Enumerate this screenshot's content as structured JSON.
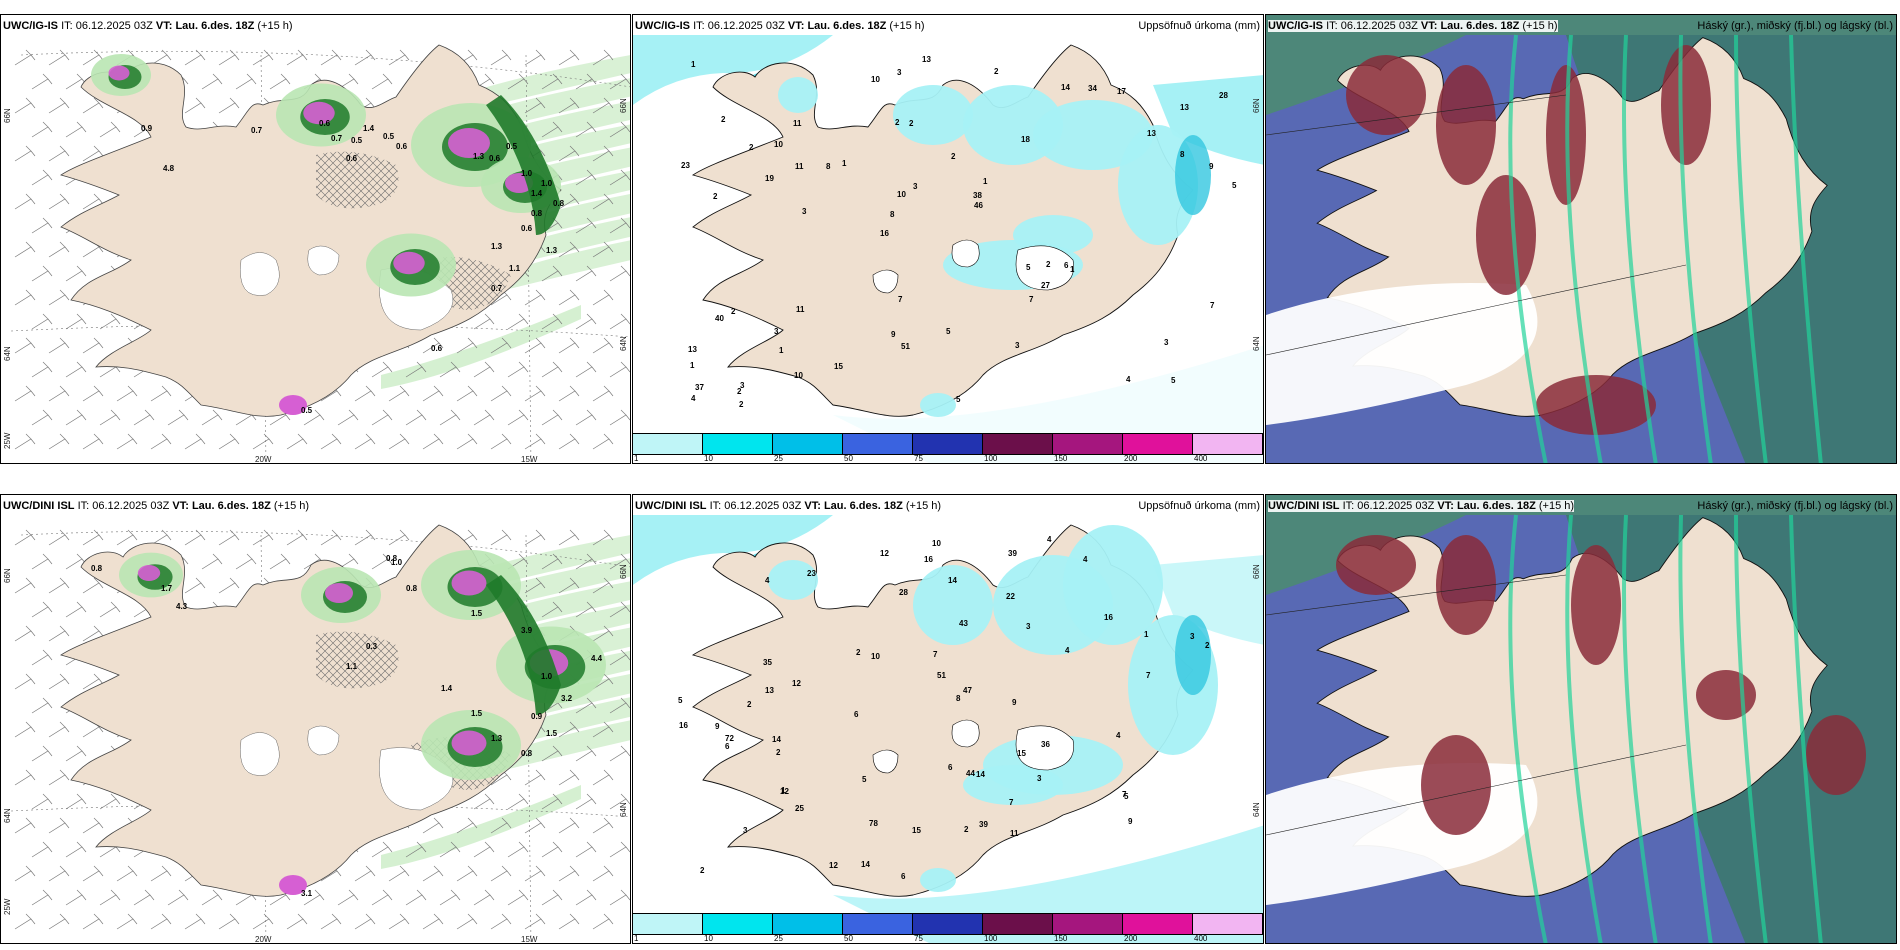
{
  "rows": [
    {
      "model": "UWC/IG-IS",
      "it_label": "IT:",
      "it_value": "06.12.2025 03Z",
      "vt_label": "VT:",
      "vt_value": "Lau. 6.des. 18Z",
      "lead": "(+15 h)",
      "wind_panel": {
        "lat_labels": [
          "66N",
          "64N",
          "25W"
        ],
        "right_lat_labels": [
          "66N",
          "64N"
        ],
        "lon_labels": [
          "20W",
          "15W"
        ],
        "values": [
          "0.7",
          "0.6",
          "0.7",
          "0.6",
          "0.5",
          "1.4",
          "0.5",
          "0.6",
          "1.3",
          "0.6",
          "0.5",
          "1.0",
          "1.4",
          "1.0",
          "0.8",
          "0.8",
          "1.3",
          "1.1",
          "0.7",
          "0.6",
          "0.5",
          "4.8",
          "0.9",
          "0.6",
          "1.3"
        ]
      },
      "precip_panel": {
        "title_right": "Uppsöfnuð úrkoma (mm)",
        "right_lat_labels": [
          "66N",
          "64N"
        ],
        "values": [
          "5",
          "2",
          "13",
          "16",
          "18",
          "3",
          "2",
          "2",
          "2",
          "1",
          "1",
          "1",
          "2",
          "1",
          "1",
          "2",
          "3",
          "5",
          "5",
          "8",
          "8",
          "9",
          "10",
          "11",
          "14",
          "11",
          "4",
          "3",
          "6",
          "5",
          "8",
          "19",
          "7",
          "10",
          "9",
          "38",
          "37",
          "51",
          "46",
          "40",
          "13",
          "28",
          "27",
          "3",
          "3",
          "2",
          "4",
          "5",
          "17",
          "13",
          "3",
          "23",
          "10",
          "34",
          "2",
          "2",
          "10",
          "3",
          "7",
          "7",
          "15",
          "2",
          "11",
          "13",
          "1",
          "2"
        ]
      },
      "cloud_panel": {
        "title_right": "Háský (gr.), miðský (fj.bl.) og lágský (bl.)"
      }
    },
    {
      "model": "UWC/DINI ISL",
      "it_label": "IT:",
      "it_value": "06.12.2025 03Z",
      "vt_label": "VT:",
      "vt_value": "Lau. 6.des. 18Z",
      "lead": "(+15 h)",
      "wind_panel": {
        "lat_labels": [
          "66N",
          "64N",
          "25W"
        ],
        "right_lat_labels": [
          "66N",
          "64N"
        ],
        "lon_labels": [
          "20W",
          "15W"
        ],
        "values": [
          "0.8",
          "1.7",
          "4.3",
          "0.8",
          "1.5",
          "3.9",
          "0.3",
          "1.0",
          "0.8",
          "1.1",
          "1.4",
          "1.3",
          "0.8",
          "3.2",
          "1.0",
          "4.4",
          "1.5",
          "0.9",
          "1.5",
          "3.1"
        ]
      },
      "precip_panel": {
        "title_right": "Uppsöfnuð úrkoma (mm)",
        "right_lat_labels": [
          "66N",
          "64N"
        ],
        "values": [
          "3",
          "4",
          "23",
          "16",
          "44",
          "12",
          "2",
          "1",
          "1",
          "4",
          "9",
          "10",
          "3",
          "8",
          "6",
          "12",
          "9",
          "5",
          "12",
          "14",
          "11",
          "16",
          "28",
          "47",
          "51",
          "78",
          "72",
          "39",
          "43",
          "36",
          "35",
          "25",
          "39",
          "6",
          "5",
          "6",
          "3",
          "9",
          "3",
          "4",
          "2",
          "14",
          "15",
          "14",
          "16",
          "13",
          "15",
          "2",
          "5",
          "7",
          "10",
          "12",
          "7",
          "7",
          "6",
          "14",
          "2",
          "7",
          "4",
          "2",
          "2",
          "4",
          "22"
        ]
      },
      "cloud_panel": {
        "title_right": "Háský (gr.), miðský (fj.bl.) og lágský (bl.)"
      }
    }
  ],
  "colorbar": {
    "colors": [
      "#bff5f7",
      "#00e5ee",
      "#00bfe8",
      "#3a63e0",
      "#2233b0",
      "#6b0f4a",
      "#a5167e",
      "#e0119b",
      "#f2b5f2"
    ],
    "ticks": [
      "1",
      "10",
      "25",
      "50",
      "75",
      "100",
      "150",
      "200",
      "400"
    ]
  },
  "palette": {
    "land": "#efe0d0",
    "precip": "#a6f1f5",
    "wind_green_light": "#b9e6b3",
    "wind_green_dark": "#1f7a2a",
    "wind_magenta": "#d65fd3",
    "cloud_high": "#8a2b3a",
    "cloud_mid": "#3a7a6a",
    "cloud_low": "#5c5fc8",
    "cloud_edge": "#22d39a"
  }
}
